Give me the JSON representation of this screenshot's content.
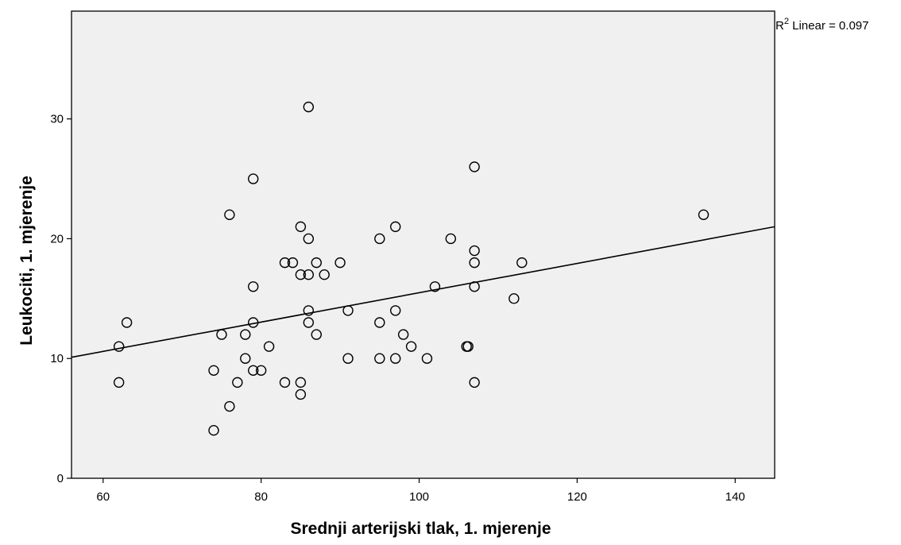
{
  "chart_data": {
    "type": "scatter",
    "title": "",
    "xlabel": "Srednji arterijski tlak, 1. mjerenje",
    "ylabel": "Leukociti, 1. mjerenje",
    "xlim": [
      56,
      145
    ],
    "ylim": [
      0,
      39
    ],
    "xticks": [
      60,
      80,
      100,
      120,
      140
    ],
    "yticks": [
      0,
      10,
      20,
      30
    ],
    "grid": false,
    "plot_background": "#f0f0f0",
    "marker": "hollow-circle",
    "fit_line": {
      "type": "linear",
      "label_prefix": "R",
      "label_sup": "2",
      "label_rest": " Linear = 0.097",
      "x": [
        56,
        145
      ],
      "y": [
        10.1,
        21.0
      ]
    },
    "points": [
      {
        "x": 62,
        "y": 11
      },
      {
        "x": 62,
        "y": 8
      },
      {
        "x": 63,
        "y": 13
      },
      {
        "x": 74,
        "y": 9
      },
      {
        "x": 74,
        "y": 4
      },
      {
        "x": 75,
        "y": 12
      },
      {
        "x": 76,
        "y": 22
      },
      {
        "x": 76,
        "y": 6
      },
      {
        "x": 77,
        "y": 8
      },
      {
        "x": 78,
        "y": 12
      },
      {
        "x": 78,
        "y": 10
      },
      {
        "x": 79,
        "y": 25
      },
      {
        "x": 79,
        "y": 16
      },
      {
        "x": 79,
        "y": 13
      },
      {
        "x": 79,
        "y": 9
      },
      {
        "x": 80,
        "y": 9
      },
      {
        "x": 81,
        "y": 11
      },
      {
        "x": 83,
        "y": 18
      },
      {
        "x": 83,
        "y": 8
      },
      {
        "x": 84,
        "y": 18
      },
      {
        "x": 85,
        "y": 21
      },
      {
        "x": 85,
        "y": 17
      },
      {
        "x": 85,
        "y": 8
      },
      {
        "x": 85,
        "y": 7
      },
      {
        "x": 86,
        "y": 31
      },
      {
        "x": 86,
        "y": 20
      },
      {
        "x": 86,
        "y": 17
      },
      {
        "x": 86,
        "y": 14
      },
      {
        "x": 86,
        "y": 13
      },
      {
        "x": 87,
        "y": 18
      },
      {
        "x": 87,
        "y": 12
      },
      {
        "x": 88,
        "y": 17
      },
      {
        "x": 90,
        "y": 18
      },
      {
        "x": 91,
        "y": 14
      },
      {
        "x": 91,
        "y": 10
      },
      {
        "x": 95,
        "y": 20
      },
      {
        "x": 95,
        "y": 13
      },
      {
        "x": 95,
        "y": 10
      },
      {
        "x": 97,
        "y": 21
      },
      {
        "x": 97,
        "y": 14
      },
      {
        "x": 97,
        "y": 10
      },
      {
        "x": 98,
        "y": 12
      },
      {
        "x": 99,
        "y": 11
      },
      {
        "x": 101,
        "y": 10
      },
      {
        "x": 102,
        "y": 16
      },
      {
        "x": 104,
        "y": 20
      },
      {
        "x": 106,
        "y": 11
      },
      {
        "x": 106.2,
        "y": 11
      },
      {
        "x": 107,
        "y": 26
      },
      {
        "x": 107,
        "y": 19
      },
      {
        "x": 107,
        "y": 18
      },
      {
        "x": 107,
        "y": 16
      },
      {
        "x": 107,
        "y": 8
      },
      {
        "x": 112,
        "y": 15
      },
      {
        "x": 113,
        "y": 18
      },
      {
        "x": 136,
        "y": 22
      }
    ]
  }
}
